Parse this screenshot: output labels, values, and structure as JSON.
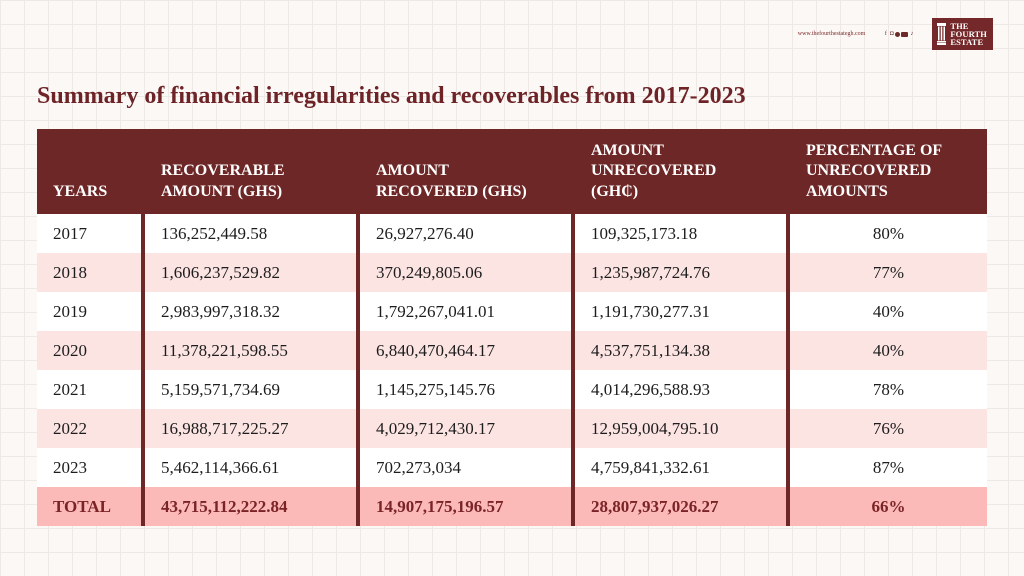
{
  "header": {
    "website": "www.thefourthestategh.com",
    "social_icons": [
      "facebook-icon",
      "instagram-icon",
      "threads-icon",
      "youtube-icon",
      "tiktok-icon"
    ],
    "logo_lines": [
      "THE",
      "FOURTH",
      "ESTATE"
    ]
  },
  "title": "Summary of financial irregularities and recoverables from 2017-2023",
  "table": {
    "headers": [
      [
        "YEARS"
      ],
      [
        "RECOVERABLE",
        "AMOUNT (GHS)"
      ],
      [
        "AMOUNT",
        "RECOVERED (GHS)"
      ],
      [
        "AMOUNT",
        "UNRECOVERED",
        "(GH₵)"
      ],
      [
        "PERCENTAGE OF",
        "UNRECOVERED",
        "AMOUNTS"
      ]
    ],
    "rows": [
      [
        "2017",
        "136,252,449.58",
        "26,927,276.40",
        "109,325,173.18",
        "80%"
      ],
      [
        "2018",
        "1,606,237,529.82",
        "370,249,805.06",
        "1,235,987,724.76",
        "77%"
      ],
      [
        "2019",
        "2,983,997,318.32",
        "1,792,267,041.01",
        "1,191,730,277.31",
        "40%"
      ],
      [
        "2020",
        "11,378,221,598.55",
        "6,840,470,464.17",
        "4,537,751,134.38",
        "40%"
      ],
      [
        "2021",
        "5,159,571,734.69",
        "1,145,275,145.76",
        "4,014,296,588.93",
        "78%"
      ],
      [
        "2022",
        "16,988,717,225.27",
        "4,029,712,430.17",
        "12,959,004,795.10",
        "76%"
      ],
      [
        "2023",
        "5,462,114,366.61",
        "702,273,034",
        "4,759,841,332.61",
        "87%"
      ]
    ],
    "total": [
      "TOTAL",
      "43,715,112,222.84",
      "14,907,175,196.57",
      "28,807,937,026.27",
      "66%"
    ]
  },
  "colors": {
    "brand": "#6e2727",
    "row_alt": "#fce4e3",
    "total_row": "#fbb9b8"
  }
}
